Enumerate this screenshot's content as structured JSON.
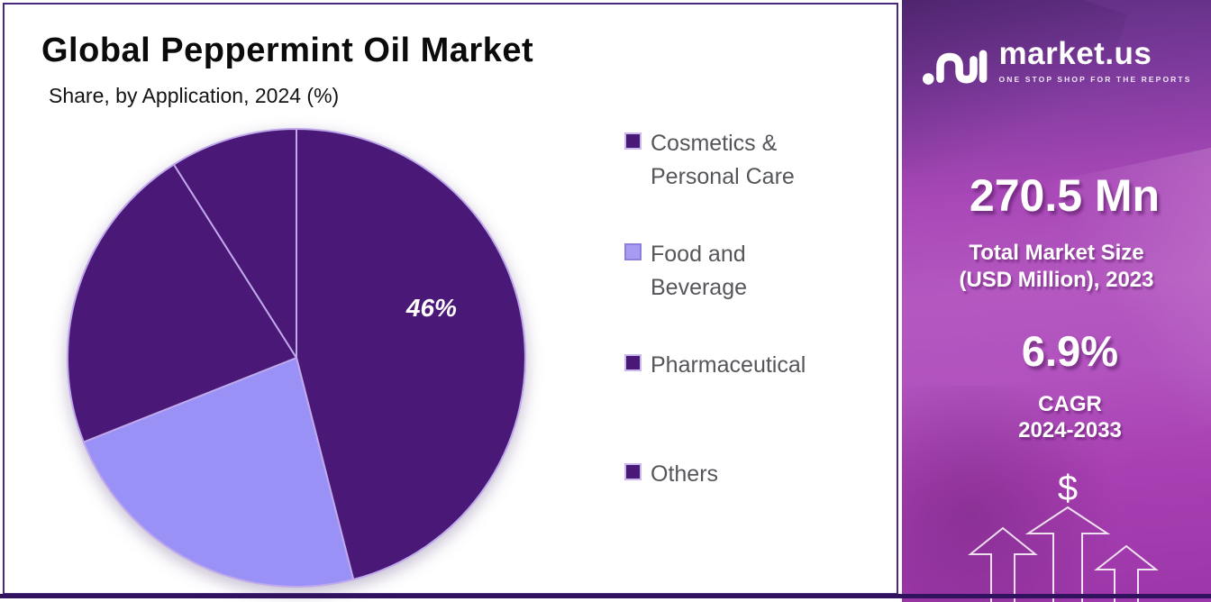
{
  "title": "Global Peppermint Oil Market",
  "subtitle": "Share, by Application, 2024 (%)",
  "chart_data": {
    "type": "pie",
    "title": "Global Peppermint Oil Market",
    "subtitle": "Share, by Application, 2024 (%)",
    "unit": "percent share",
    "start_angle_deg": 0,
    "legend_position": "right",
    "divider_color": "#BFA9EC",
    "slices": [
      {
        "label": "Cosmetics & Personal Care",
        "value": 46,
        "color": "#4A1876",
        "data_label": "46%"
      },
      {
        "label": "Food and Beverage",
        "value": 23,
        "color": "#9A91F7",
        "data_label": ""
      },
      {
        "label": "Pharmaceutical",
        "value": 22,
        "color": "#4A1876",
        "data_label": ""
      },
      {
        "label": "Others",
        "value": 9,
        "color": "#4A1876",
        "data_label": ""
      }
    ],
    "notes": "Only the Cosmetics & Personal Care slice carries a visible data label (46%)."
  },
  "legend": {
    "items": [
      {
        "line1": "Cosmetics &",
        "line2": "Personal Care",
        "swatch": "#4A1876",
        "border": "#C9B9EF"
      },
      {
        "line1": "Food and",
        "line2": "Beverage",
        "swatch": "#A89BF2",
        "border": "#8B7FE0"
      },
      {
        "line1": "Pharmaceutical",
        "line2": "",
        "swatch": "#4A1876",
        "border": "#C9B9EF"
      },
      {
        "line1": "Others",
        "line2": "",
        "swatch": "#4A1876",
        "border": "#C9B9EF"
      }
    ]
  },
  "sidebar": {
    "logo": {
      "brand": "market.us",
      "tagline": "ONE STOP SHOP FOR THE REPORTS"
    },
    "stats": [
      {
        "value": "270.5 Mn",
        "label_line1": "Total Market Size",
        "label_line2": "(USD Million), 2023"
      },
      {
        "value": "6.9%",
        "label_line1": "CAGR",
        "label_line2": "2024-2033"
      }
    ],
    "dollar_symbol": "$"
  },
  "colors": {
    "slice_dark_purple": "#4A1876",
    "slice_light_purple": "#9A91F7",
    "slice_divider": "#BFA9EC",
    "legend_text": "#55565a",
    "panel_border": "#4A2880",
    "bottom_bar": "#31125F",
    "sidebar_gradient_top": "#5E2F82",
    "sidebar_gradient_mid": "#B458C0",
    "sidebar_gradient_bottom": "#9C37A9",
    "sidebar_text": "#FFFFFF"
  }
}
